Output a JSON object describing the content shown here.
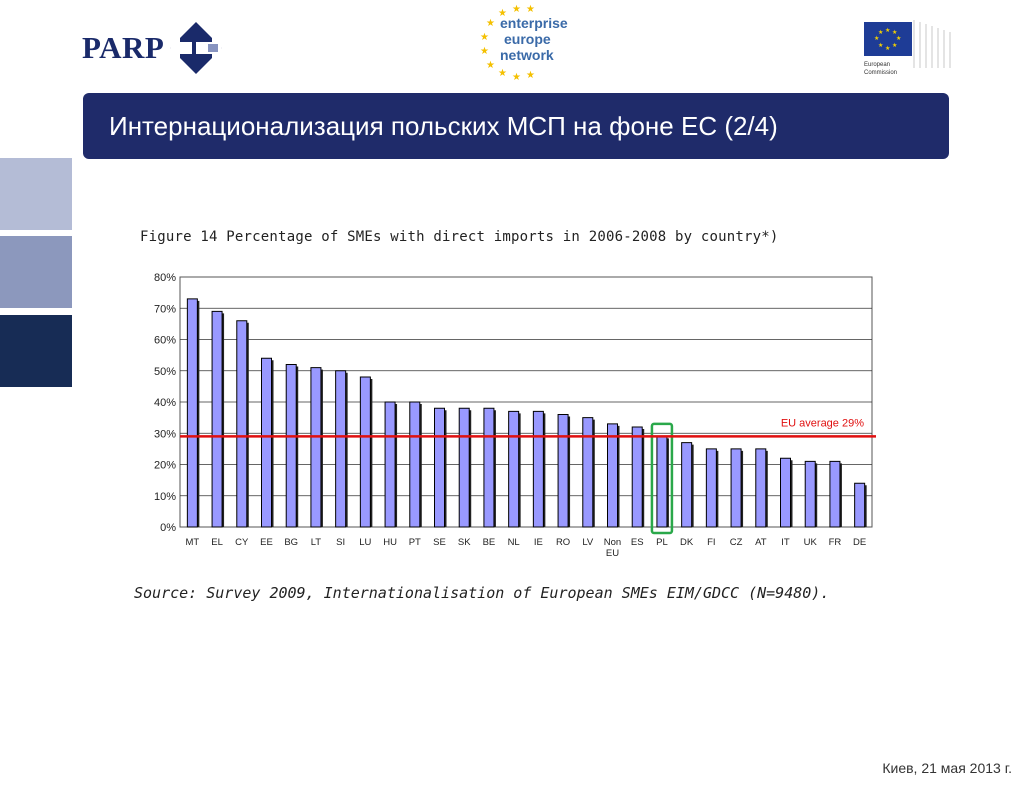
{
  "header": {
    "parp_logo_text": "PARP",
    "een_logo_lines": [
      "enterprise",
      "europe",
      "network"
    ],
    "ec_logo_lines": [
      "European",
      "Commission"
    ]
  },
  "slide": {
    "title": "Интернационализация польских МСП на фоне ЕС (2/4)",
    "footer_date": "Киев, 21 мая 2013 г."
  },
  "colors": {
    "title_bg": "#1f2b6a",
    "bar_fill": "#9999ff",
    "avg_line": "#e01010",
    "highlight_box": "#2aa84a",
    "side_light": "#b4bcd6",
    "side_mid": "#8c98bd",
    "side_dark": "#172c55"
  },
  "chart_data": {
    "type": "bar",
    "caption": "Figure 14   Percentage of SMEs with direct imports in 2006-2008 by country*)",
    "categories": [
      "MT",
      "EL",
      "CY",
      "EE",
      "BG",
      "LT",
      "SI",
      "LU",
      "HU",
      "PT",
      "SE",
      "SK",
      "BE",
      "NL",
      "IE",
      "RO",
      "LV",
      "Non EU",
      "ES",
      "PL",
      "DK",
      "FI",
      "CZ",
      "AT",
      "IT",
      "UK",
      "FR",
      "DE"
    ],
    "values": [
      73,
      69,
      66,
      54,
      52,
      51,
      50,
      48,
      40,
      40,
      38,
      38,
      38,
      37,
      37,
      36,
      35,
      33,
      32,
      29,
      27,
      25,
      25,
      25,
      22,
      21,
      21,
      14
    ],
    "ylim": [
      0,
      80
    ],
    "yticks": [
      "0%",
      "10%",
      "20%",
      "30%",
      "40%",
      "50%",
      "60%",
      "70%",
      "80%"
    ],
    "grid": true,
    "reference_line": {
      "label": "EU average 29%",
      "value": 29
    },
    "highlighted_category": "PL",
    "source": "Source: Survey 2009, Internationalisation of European SMEs EIM/GDCC (N=9480)."
  }
}
